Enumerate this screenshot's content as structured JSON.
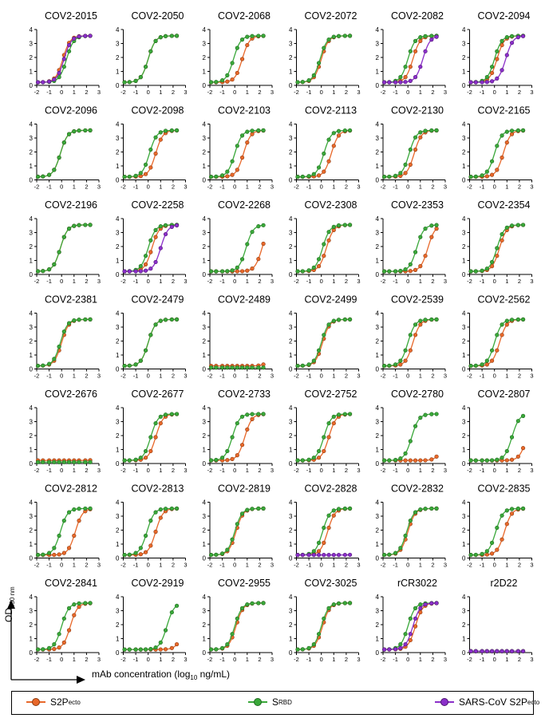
{
  "figure": {
    "x_caption_main": "mAb concentration (log",
    "x_caption_sub": "10",
    "x_caption_tail": " ng/mL)",
    "y_caption_main": "OD",
    "y_caption_sub": "450 nm"
  },
  "legend": [
    {
      "label": "S2P",
      "sub": "ecto",
      "color": "#e8682a"
    },
    {
      "label": "S",
      "sub": "RBD",
      "color": "#3aa83a"
    },
    {
      "label": "SARS-CoV S2P",
      "sub": "ecto",
      "color": "#8b2fc9"
    }
  ],
  "chart_data": {
    "type": "line",
    "xlim": [
      -2,
      3
    ],
    "ylim": [
      0,
      4
    ],
    "xticks": [
      "-2",
      "-1",
      "0",
      "1",
      "2",
      "3"
    ],
    "yticks": [
      "0",
      "1",
      "2",
      "3",
      "4"
    ],
    "panels": [
      {
        "title": "COV2-2015",
        "series": [
          {
            "name": "S2Pecto",
            "ec50": 0.1
          },
          {
            "name": "SRBD",
            "ec50": 0.4
          },
          {
            "name": "SARS-CoV S2Pecto",
            "ec50": 0.2
          }
        ]
      },
      {
        "title": "COV2-2050",
        "series": [
          {
            "name": "S2Pecto",
            "ec50": 0.0
          },
          {
            "name": "SRBD",
            "ec50": 0.0
          }
        ]
      },
      {
        "title": "COV2-2068",
        "series": [
          {
            "name": "S2Pecto",
            "ec50": 0.6
          },
          {
            "name": "SRBD",
            "ec50": -0.1
          }
        ]
      },
      {
        "title": "COV2-2072",
        "series": [
          {
            "name": "S2Pecto",
            "ec50": 0.0
          },
          {
            "name": "SRBD",
            "ec50": -0.1
          }
        ]
      },
      {
        "title": "COV2-2082",
        "series": [
          {
            "name": "S2Pecto",
            "ec50": 0.4
          },
          {
            "name": "SRBD",
            "ec50": 0.0
          },
          {
            "name": "SARS-CoV S2Pecto",
            "ec50": 1.2
          }
        ]
      },
      {
        "title": "COV2-2094",
        "series": [
          {
            "name": "S2Pecto",
            "ec50": 0.2
          },
          {
            "name": "SRBD",
            "ec50": 0.0
          },
          {
            "name": "SARS-CoV S2Pecto",
            "ec50": 0.9
          }
        ]
      },
      {
        "title": "COV2-2096",
        "series": [
          {
            "name": "S2Pecto",
            "ec50": -0.1
          },
          {
            "name": "SRBD",
            "ec50": -0.1
          }
        ]
      },
      {
        "title": "COV2-2098",
        "series": [
          {
            "name": "S2Pecto",
            "ec50": 0.6
          },
          {
            "name": "SRBD",
            "ec50": 0.1
          }
        ]
      },
      {
        "title": "COV2-2103",
        "series": [
          {
            "name": "S2Pecto",
            "ec50": 0.7
          },
          {
            "name": "SRBD",
            "ec50": 0.0
          }
        ]
      },
      {
        "title": "COV2-2113",
        "series": [
          {
            "name": "S2Pecto",
            "ec50": 0.8
          },
          {
            "name": "SRBD",
            "ec50": 0.2
          }
        ]
      },
      {
        "title": "COV2-2130",
        "series": [
          {
            "name": "S2Pecto",
            "ec50": 0.5
          },
          {
            "name": "SRBD",
            "ec50": 0.1
          }
        ]
      },
      {
        "title": "COV2-2165",
        "series": [
          {
            "name": "S2Pecto",
            "ec50": 0.7
          },
          {
            "name": "SRBD",
            "ec50": 0.0
          }
        ]
      },
      {
        "title": "COV2-2196",
        "series": [
          {
            "name": "S2Pecto",
            "ec50": -0.1
          },
          {
            "name": "SRBD",
            "ec50": -0.1
          }
        ]
      },
      {
        "title": "COV2-2258",
        "series": [
          {
            "name": "S2Pecto",
            "ec50": 0.3
          },
          {
            "name": "SRBD",
            "ec50": 0.0
          },
          {
            "name": "SARS-CoV S2Pecto",
            "ec50": 1.0
          }
        ]
      },
      {
        "title": "COV2-2268",
        "series": [
          {
            "name": "S2Pecto",
            "ec50": 2.2,
            "top": 3.6
          },
          {
            "name": "SRBD",
            "ec50": 0.9
          }
        ]
      },
      {
        "title": "COV2-2308",
        "series": [
          {
            "name": "S2Pecto",
            "ec50": 0.4
          },
          {
            "name": "SRBD",
            "ec50": 0.1
          }
        ]
      },
      {
        "title": "COV2-2353",
        "series": [
          {
            "name": "S2Pecto",
            "ec50": 1.6
          },
          {
            "name": "SRBD",
            "ec50": 0.7
          }
        ]
      },
      {
        "title": "COV2-2354",
        "series": [
          {
            "name": "S2Pecto",
            "ec50": 0.4
          },
          {
            "name": "SRBD",
            "ec50": 0.2
          }
        ]
      },
      {
        "title": "COV2-2381",
        "series": [
          {
            "name": "S2Pecto",
            "ec50": 0.0
          },
          {
            "name": "SRBD",
            "ec50": -0.1
          }
        ]
      },
      {
        "title": "COV2-2479",
        "series": [
          {
            "name": "S2Pecto",
            "ec50": 0.0
          },
          {
            "name": "SRBD",
            "ec50": 0.0
          }
        ]
      },
      {
        "title": "COV2-2489",
        "series": [
          {
            "name": "S2Pecto",
            "ec50": 3.3,
            "top": 3.6
          },
          {
            "name": "SRBD",
            "flat": 0.1
          }
        ]
      },
      {
        "title": "COV2-2499",
        "series": [
          {
            "name": "S2Pecto",
            "ec50": 0.1
          },
          {
            "name": "SRBD",
            "ec50": 0.0
          }
        ]
      },
      {
        "title": "COV2-2539",
        "series": [
          {
            "name": "S2Pecto",
            "ec50": 0.4
          },
          {
            "name": "SRBD",
            "ec50": 0.0
          }
        ]
      },
      {
        "title": "COV2-2562",
        "series": [
          {
            "name": "S2Pecto",
            "ec50": 0.4
          },
          {
            "name": "SRBD",
            "ec50": 0.0
          }
        ]
      },
      {
        "title": "COV2-2676",
        "series": [
          {
            "name": "S2Pecto",
            "ec50": 3.8,
            "top": 3.6
          },
          {
            "name": "SRBD",
            "flat": 0.1
          }
        ]
      },
      {
        "title": "COV2-2677",
        "series": [
          {
            "name": "S2Pecto",
            "ec50": 0.6
          },
          {
            "name": "SRBD",
            "ec50": 0.2
          }
        ]
      },
      {
        "title": "COV2-2733",
        "series": [
          {
            "name": "S2Pecto",
            "ec50": 0.8
          },
          {
            "name": "SRBD",
            "ec50": -0.2
          }
        ]
      },
      {
        "title": "COV2-2752",
        "series": [
          {
            "name": "S2Pecto",
            "ec50": 0.6
          },
          {
            "name": "SRBD",
            "ec50": 0.2
          }
        ]
      },
      {
        "title": "COV2-2780",
        "series": [
          {
            "name": "S2Pecto",
            "ec50": 3.0,
            "top": 3.6
          },
          {
            "name": "SRBD",
            "ec50": 0.3
          }
        ]
      },
      {
        "title": "COV2-2807",
        "series": [
          {
            "name": "S2Pecto",
            "ec50": 2.6,
            "top": 3.6
          },
          {
            "name": "SRBD",
            "ec50": 1.4
          }
        ]
      },
      {
        "title": "COV2-2812",
        "series": [
          {
            "name": "S2Pecto",
            "ec50": 1.1
          },
          {
            "name": "SRBD",
            "ec50": -0.1
          }
        ]
      },
      {
        "title": "COV2-2813",
        "series": [
          {
            "name": "S2Pecto",
            "ec50": 0.6
          },
          {
            "name": "SRBD",
            "ec50": -0.1
          }
        ]
      },
      {
        "title": "COV2-2819",
        "series": [
          {
            "name": "S2Pecto",
            "ec50": 0.1
          },
          {
            "name": "SRBD",
            "ec50": 0.0
          }
        ]
      },
      {
        "title": "COV2-2828",
        "series": [
          {
            "name": "S2Pecto",
            "ec50": 0.5
          },
          {
            "name": "SRBD",
            "ec50": 0.1
          },
          {
            "name": "SARS-CoV S2Pecto",
            "ec50": 3.9,
            "top": 3.6
          }
        ]
      },
      {
        "title": "COV2-2832",
        "series": [
          {
            "name": "S2Pecto",
            "ec50": 0.0
          },
          {
            "name": "SRBD",
            "ec50": -0.1
          }
        ]
      },
      {
        "title": "COV2-2835",
        "series": [
          {
            "name": "S2Pecto",
            "ec50": 0.8
          },
          {
            "name": "SRBD",
            "ec50": 0.1
          }
        ]
      },
      {
        "title": "COV2-2841",
        "series": [
          {
            "name": "S2Pecto",
            "ec50": 0.7
          },
          {
            "name": "SRBD",
            "ec50": 0.0
          }
        ]
      },
      {
        "title": "COV2-2919",
        "series": [
          {
            "name": "S2Pecto",
            "ec50": 2.9,
            "top": 3.6
          },
          {
            "name": "SRBD",
            "ec50": 1.5
          }
        ]
      },
      {
        "title": "COV2-2955",
        "series": [
          {
            "name": "S2Pecto",
            "ec50": 0.1
          },
          {
            "name": "SRBD",
            "ec50": 0.0
          }
        ]
      },
      {
        "title": "COV2-3025",
        "series": [
          {
            "name": "S2Pecto",
            "ec50": 0.1
          },
          {
            "name": "SRBD",
            "ec50": 0.0
          }
        ]
      },
      {
        "title": "rCR3022",
        "series": [
          {
            "name": "S2Pecto",
            "ec50": 0.6
          },
          {
            "name": "SRBD",
            "ec50": 0.0
          },
          {
            "name": "SARS-CoV S2Pecto",
            "ec50": 0.4
          }
        ]
      },
      {
        "title": "r2D22",
        "series": [
          {
            "name": "S2Pecto",
            "flat": 0.1
          },
          {
            "name": "SRBD",
            "flat": 0.1
          },
          {
            "name": "SARS-CoV S2Pecto",
            "flat": 0.1
          }
        ]
      }
    ]
  }
}
